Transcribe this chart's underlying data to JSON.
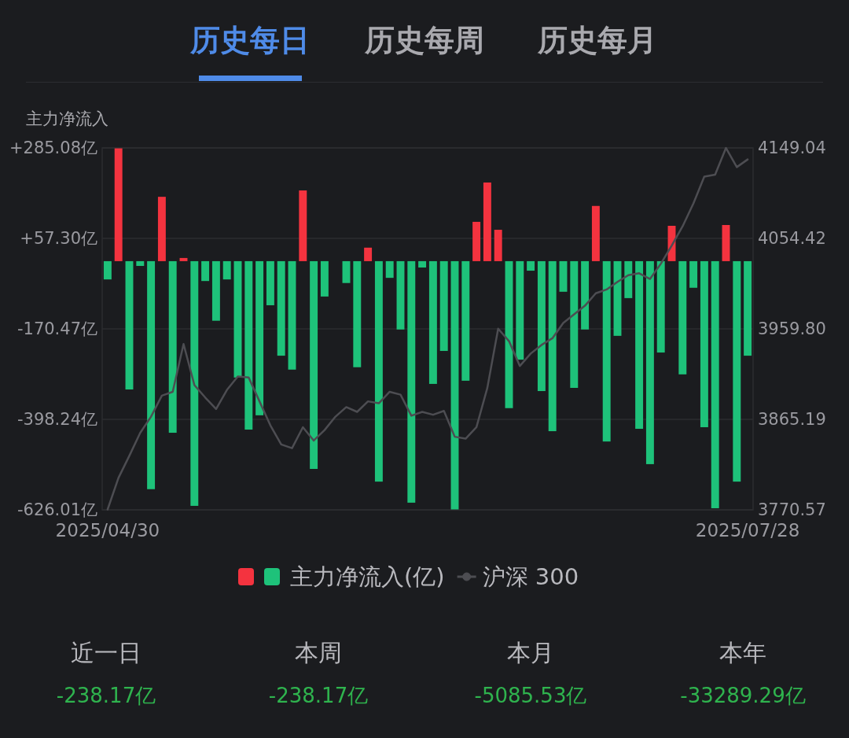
{
  "chart_data": {
    "type": "bar",
    "title": "历史每日",
    "ylabel": "主力净流入",
    "categories": [
      "2025/04/30",
      null,
      null,
      null,
      null,
      null,
      null,
      null,
      null,
      null,
      null,
      null,
      null,
      null,
      null,
      null,
      null,
      null,
      null,
      null,
      null,
      null,
      null,
      null,
      null,
      null,
      null,
      null,
      null,
      null,
      null,
      null,
      null,
      null,
      null,
      null,
      null,
      null,
      null,
      null,
      null,
      null,
      null,
      null,
      null,
      null,
      null,
      null,
      null,
      null,
      null,
      null,
      null,
      null,
      null,
      null,
      null,
      null,
      null,
      "2025/07/28"
    ],
    "series": [
      {
        "name": "主力净流入(亿)",
        "values": [
          -46,
          284,
          -323,
          -12,
          -574,
          162,
          -432,
          8,
          -616,
          -50,
          -150,
          -46,
          -293,
          -424,
          -388,
          -111,
          -238,
          -273,
          178,
          -523,
          -89,
          0,
          -55,
          -267,
          34,
          -555,
          -42,
          -172,
          -608,
          -16,
          -309,
          -226,
          -625,
          -301,
          99,
          198,
          79,
          -370,
          -248,
          -24,
          -327,
          -428,
          -77,
          -319,
          -172,
          139,
          -454,
          -188,
          -93,
          -422,
          -511,
          -230,
          89,
          -285,
          -67,
          -418,
          -622,
          91,
          -555,
          -238
        ],
        "colors": [
          "#1ec27a",
          "#f4333f",
          "#1ec27a",
          "#1ec27a",
          "#1ec27a",
          "#f4333f",
          "#1ec27a",
          "#f4333f",
          "#1ec27a",
          "#1ec27a",
          "#1ec27a",
          "#1ec27a",
          "#1ec27a",
          "#1ec27a",
          "#1ec27a",
          "#1ec27a",
          "#1ec27a",
          "#1ec27a",
          "#f4333f",
          "#1ec27a",
          "#1ec27a",
          "#1ec27a",
          "#1ec27a",
          "#1ec27a",
          "#f4333f",
          "#1ec27a",
          "#1ec27a",
          "#1ec27a",
          "#1ec27a",
          "#1ec27a",
          "#1ec27a",
          "#1ec27a",
          "#1ec27a",
          "#1ec27a",
          "#f4333f",
          "#f4333f",
          "#f4333f",
          "#1ec27a",
          "#1ec27a",
          "#1ec27a",
          "#1ec27a",
          "#1ec27a",
          "#1ec27a",
          "#1ec27a",
          "#1ec27a",
          "#f4333f",
          "#1ec27a",
          "#1ec27a",
          "#1ec27a",
          "#1ec27a",
          "#1ec27a",
          "#1ec27a",
          "#f4333f",
          "#1ec27a",
          "#1ec27a",
          "#1ec27a",
          "#1ec27a",
          "#f4333f",
          "#1ec27a",
          "#1ec27a"
        ]
      },
      {
        "name": "沪深 300",
        "type": "line",
        "axis": "y2",
        "color": "#4d4d52",
        "values": [
          3771,
          3804,
          3827,
          3851,
          3868,
          3890,
          3894,
          3944,
          3901,
          3888,
          3876,
          3896,
          3910,
          3909,
          3884,
          3859,
          3839,
          3835,
          3857,
          3843,
          3854,
          3868,
          3878,
          3873,
          3884,
          3882,
          3894,
          3891,
          3869,
          3873,
          3870,
          3874,
          3847,
          3845,
          3857,
          3898,
          3960,
          3947,
          3921,
          3934,
          3943,
          3950,
          3966,
          3975,
          3984,
          3997,
          4001,
          4009,
          4016,
          4018,
          4012,
          4028,
          4047,
          4067,
          4091,
          4119,
          4121,
          4149,
          4129,
          4137
        ]
      }
    ],
    "ylim": [
      -626.01,
      285.08
    ],
    "yticks": [
      {
        "value": 285.08,
        "label": "+285.08亿"
      },
      {
        "value": 57.3,
        "label": "+57.30亿"
      },
      {
        "value": -170.47,
        "label": "-170.47亿"
      },
      {
        "value": -398.24,
        "label": "-398.24亿"
      },
      {
        "value": -626.01,
        "label": "-626.01亿"
      }
    ],
    "y2lim": [
      3770.57,
      4149.04
    ],
    "y2ticks": [
      {
        "value": 4149.04,
        "label": "4149.04"
      },
      {
        "value": 4054.42,
        "label": "4054.42"
      },
      {
        "value": 3959.8,
        "label": "3959.80"
      },
      {
        "value": 3865.19,
        "label": "3865.19"
      },
      {
        "value": 3770.57,
        "label": "3770.57"
      }
    ],
    "grid": "y",
    "legend": "bottom",
    "annotations": [
      "历史每周",
      "历史每月",
      "近一日",
      "-238.17亿",
      "本周",
      "-238.17亿",
      "本月",
      "-5085.53亿",
      "本年",
      "-33289.29亿"
    ]
  }
}
